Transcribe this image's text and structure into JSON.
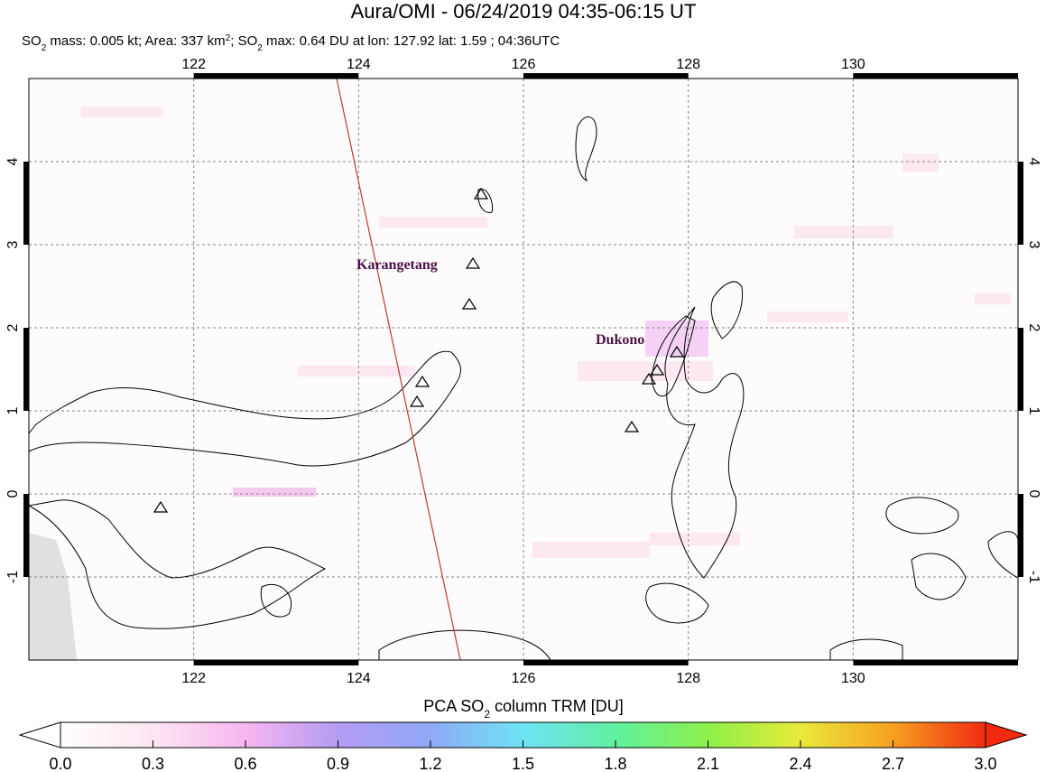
{
  "chart_data": {
    "type": "map",
    "title": "Aura/OMI - 06/24/2019 04:35-06:15 UT",
    "subtitle": [
      "SO",
      "2",
      " mass: 0.005 kt; Area: 337 km",
      "2",
      "; SO",
      "2",
      " max: 0.64 DU at lon: 127.92 lat: 1.59 ; 04:36UTC"
    ],
    "xlim": [
      120,
      132
    ],
    "ylim": [
      -2,
      5
    ],
    "xticks": [
      122,
      124,
      126,
      128,
      130
    ],
    "yticks": [
      -1,
      0,
      1,
      2,
      3,
      4
    ],
    "grid": true,
    "volcanoes": [
      {
        "name": "Karangetang"
      },
      {
        "name": "Dukono"
      }
    ],
    "colorbar": {
      "label": [
        "PCA SO",
        "2",
        " column TRM [DU]"
      ],
      "lim": [
        0,
        3
      ],
      "ticks": [
        {
          "value": 0,
          "label": "0.0"
        },
        0.3,
        0.6,
        0.9,
        1.2,
        1.5,
        1.8,
        2.1,
        2.4,
        2.7,
        {
          "value": 3,
          "label": "3.0"
        }
      ]
    }
  }
}
